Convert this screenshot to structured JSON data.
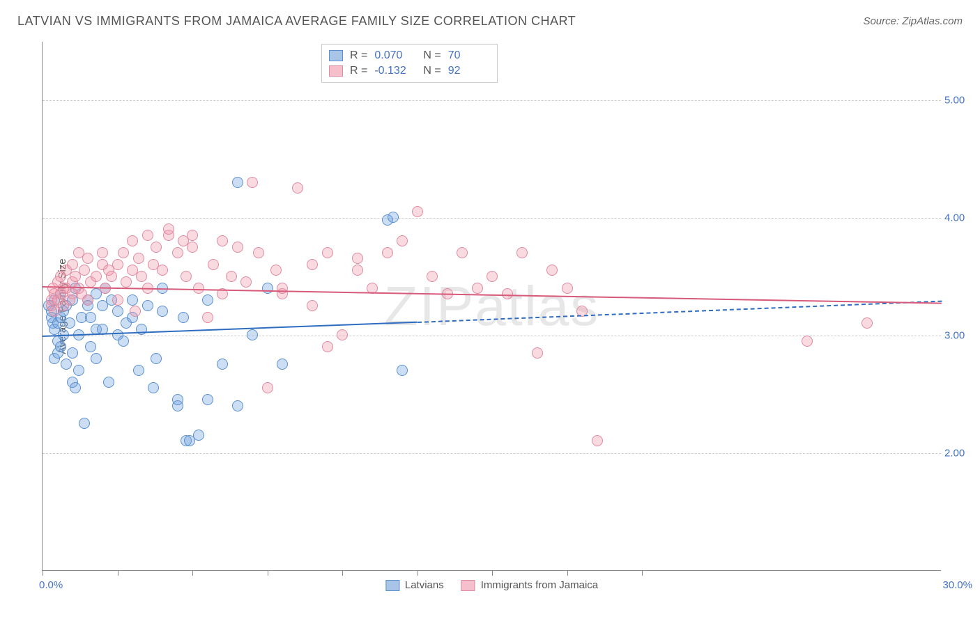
{
  "title": "LATVIAN VS IMMIGRANTS FROM JAMAICA AVERAGE FAMILY SIZE CORRELATION CHART",
  "source": "Source: ZipAtlas.com",
  "watermark": "ZIPatlas",
  "yaxis_title": "Average Family Size",
  "chart": {
    "type": "scatter",
    "xlim": [
      0,
      30
    ],
    "ylim": [
      1.0,
      5.5
    ],
    "x_tick_label_left": "0.0%",
    "x_tick_label_right": "30.0%",
    "x_tick_positions": [
      0,
      2.5,
      5,
      7.5,
      10,
      12.5,
      15,
      17.5,
      20
    ],
    "y_gridlines": [
      2.0,
      3.0,
      4.0,
      5.0
    ],
    "y_tick_labels": [
      "2.00",
      "3.00",
      "4.00",
      "5.00"
    ],
    "grid_color": "#cccccc",
    "axis_color": "#888888",
    "label_color": "#4472c4",
    "background": "#ffffff",
    "point_radius": 8,
    "point_stroke_width": 1,
    "series": [
      {
        "name": "Latvians",
        "fill": "rgba(110,160,220,0.35)",
        "stroke": "#5a8fd0",
        "swatch_fill": "#a8c5e8",
        "swatch_stroke": "#5a8fd0",
        "R": "0.070",
        "N": "70",
        "trend": {
          "x1": 0,
          "y1": 3.0,
          "x2": 12.5,
          "y2": 3.12,
          "dash_x2": 30,
          "dash_y2": 3.3,
          "color": "#2e6cc0",
          "width": 2
        },
        "points": [
          [
            0.2,
            3.25
          ],
          [
            0.3,
            3.15
          ],
          [
            0.3,
            3.2
          ],
          [
            0.35,
            3.1
          ],
          [
            0.4,
            3.3
          ],
          [
            0.4,
            3.05
          ],
          [
            0.4,
            2.8
          ],
          [
            0.5,
            3.1
          ],
          [
            0.5,
            2.85
          ],
          [
            0.5,
            2.95
          ],
          [
            0.6,
            3.35
          ],
          [
            0.6,
            3.15
          ],
          [
            0.6,
            2.9
          ],
          [
            0.7,
            3.0
          ],
          [
            0.7,
            3.2
          ],
          [
            0.8,
            2.75
          ],
          [
            0.8,
            3.25
          ],
          [
            0.9,
            3.1
          ],
          [
            1.0,
            2.85
          ],
          [
            1.0,
            2.6
          ],
          [
            1.0,
            3.3
          ],
          [
            1.1,
            3.4
          ],
          [
            1.1,
            2.55
          ],
          [
            1.2,
            3.0
          ],
          [
            1.2,
            2.7
          ],
          [
            1.3,
            3.15
          ],
          [
            1.4,
            2.25
          ],
          [
            1.5,
            3.3
          ],
          [
            1.5,
            3.25
          ],
          [
            1.6,
            2.9
          ],
          [
            1.6,
            3.15
          ],
          [
            1.8,
            3.05
          ],
          [
            1.8,
            2.8
          ],
          [
            1.8,
            3.35
          ],
          [
            2.0,
            3.25
          ],
          [
            2.0,
            3.05
          ],
          [
            2.1,
            3.4
          ],
          [
            2.2,
            2.6
          ],
          [
            2.3,
            3.3
          ],
          [
            2.5,
            3.0
          ],
          [
            2.5,
            3.2
          ],
          [
            2.7,
            2.95
          ],
          [
            2.8,
            3.1
          ],
          [
            3.0,
            3.3
          ],
          [
            3.0,
            3.15
          ],
          [
            3.2,
            2.7
          ],
          [
            3.3,
            3.05
          ],
          [
            3.5,
            3.25
          ],
          [
            3.7,
            2.55
          ],
          [
            3.8,
            2.8
          ],
          [
            4.0,
            3.4
          ],
          [
            4.0,
            3.2
          ],
          [
            4.5,
            2.4
          ],
          [
            4.5,
            2.45
          ],
          [
            4.7,
            3.15
          ],
          [
            4.8,
            2.1
          ],
          [
            4.9,
            2.1
          ],
          [
            5.2,
            2.15
          ],
          [
            5.5,
            2.45
          ],
          [
            5.5,
            3.3
          ],
          [
            6.0,
            2.75
          ],
          [
            6.5,
            4.3
          ],
          [
            6.5,
            2.4
          ],
          [
            7.0,
            3.0
          ],
          [
            7.5,
            3.4
          ],
          [
            8.0,
            2.75
          ],
          [
            11.5,
            3.98
          ],
          [
            11.7,
            4.0
          ],
          [
            12.0,
            2.7
          ]
        ]
      },
      {
        "name": "Immigrants from Jamaica",
        "fill": "rgba(240,150,170,0.35)",
        "stroke": "#e08aa0",
        "swatch_fill": "#f5c0cc",
        "swatch_stroke": "#e08aa0",
        "R": "-0.132",
        "N": "92",
        "trend": {
          "x1": 0,
          "y1": 3.42,
          "x2": 30,
          "y2": 3.28,
          "color": "#d85a7a",
          "width": 2
        },
        "points": [
          [
            0.3,
            3.3
          ],
          [
            0.3,
            3.25
          ],
          [
            0.35,
            3.4
          ],
          [
            0.4,
            3.35
          ],
          [
            0.4,
            3.2
          ],
          [
            0.5,
            3.45
          ],
          [
            0.5,
            3.3
          ],
          [
            0.6,
            3.5
          ],
          [
            0.6,
            3.35
          ],
          [
            0.7,
            3.4
          ],
          [
            0.7,
            3.25
          ],
          [
            0.8,
            3.55
          ],
          [
            0.8,
            3.4
          ],
          [
            0.9,
            3.3
          ],
          [
            1.0,
            3.45
          ],
          [
            1.0,
            3.35
          ],
          [
            1.0,
            3.6
          ],
          [
            1.1,
            3.5
          ],
          [
            1.2,
            3.7
          ],
          [
            1.2,
            3.4
          ],
          [
            1.3,
            3.35
          ],
          [
            1.4,
            3.55
          ],
          [
            1.5,
            3.3
          ],
          [
            1.5,
            3.65
          ],
          [
            1.6,
            3.45
          ],
          [
            1.8,
            3.5
          ],
          [
            2.0,
            3.6
          ],
          [
            2.0,
            3.7
          ],
          [
            2.1,
            3.4
          ],
          [
            2.2,
            3.55
          ],
          [
            2.3,
            3.5
          ],
          [
            2.5,
            3.3
          ],
          [
            2.5,
            3.6
          ],
          [
            2.7,
            3.7
          ],
          [
            2.8,
            3.45
          ],
          [
            3.0,
            3.55
          ],
          [
            3.0,
            3.8
          ],
          [
            3.1,
            3.2
          ],
          [
            3.2,
            3.65
          ],
          [
            3.3,
            3.5
          ],
          [
            3.5,
            3.4
          ],
          [
            3.5,
            3.85
          ],
          [
            3.7,
            3.6
          ],
          [
            3.8,
            3.75
          ],
          [
            4.0,
            3.55
          ],
          [
            4.2,
            3.85
          ],
          [
            4.2,
            3.9
          ],
          [
            4.5,
            3.7
          ],
          [
            4.7,
            3.8
          ],
          [
            4.8,
            3.5
          ],
          [
            5.0,
            3.75
          ],
          [
            5.0,
            3.85
          ],
          [
            5.2,
            3.4
          ],
          [
            5.5,
            3.15
          ],
          [
            5.7,
            3.6
          ],
          [
            6.0,
            3.8
          ],
          [
            6.0,
            3.35
          ],
          [
            6.3,
            3.5
          ],
          [
            6.5,
            3.75
          ],
          [
            6.8,
            3.45
          ],
          [
            7.0,
            4.3
          ],
          [
            7.2,
            3.7
          ],
          [
            7.5,
            2.55
          ],
          [
            7.8,
            3.55
          ],
          [
            8.0,
            3.35
          ],
          [
            8.0,
            3.4
          ],
          [
            8.5,
            4.25
          ],
          [
            9.0,
            3.25
          ],
          [
            9.0,
            3.6
          ],
          [
            9.5,
            3.7
          ],
          [
            9.5,
            2.9
          ],
          [
            10.0,
            3.0
          ],
          [
            10.5,
            3.55
          ],
          [
            10.5,
            3.65
          ],
          [
            11.0,
            3.4
          ],
          [
            11.5,
            3.7
          ],
          [
            12.0,
            3.8
          ],
          [
            12.5,
            4.05
          ],
          [
            13.0,
            3.5
          ],
          [
            13.5,
            3.35
          ],
          [
            14.0,
            3.7
          ],
          [
            14.5,
            3.4
          ],
          [
            15.0,
            3.5
          ],
          [
            15.5,
            3.35
          ],
          [
            16.0,
            3.7
          ],
          [
            16.5,
            2.85
          ],
          [
            17.0,
            3.55
          ],
          [
            17.5,
            3.4
          ],
          [
            18.0,
            3.2
          ],
          [
            18.5,
            2.1
          ],
          [
            25.5,
            2.95
          ],
          [
            27.5,
            3.1
          ]
        ]
      }
    ]
  },
  "legend_bottom": {
    "item1_label": "Latvians",
    "item2_label": "Immigrants from Jamaica"
  }
}
